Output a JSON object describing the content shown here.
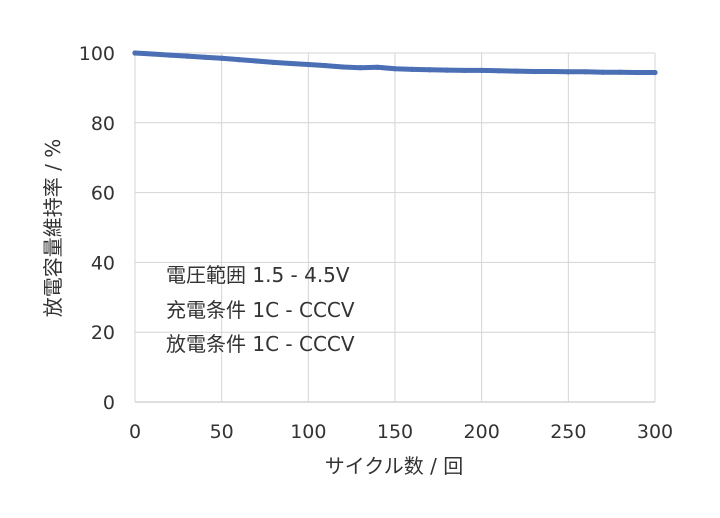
{
  "chart_data": {
    "type": "line",
    "title": "",
    "xlabel": "サイクル数 / 回",
    "ylabel": "放電容量維持率 / %",
    "xlim": [
      0,
      300
    ],
    "ylim": [
      0,
      100
    ],
    "xticks": [
      0,
      50,
      100,
      150,
      200,
      250,
      300
    ],
    "yticks": [
      0,
      20,
      40,
      60,
      80,
      100
    ],
    "grid": true,
    "legend": "none",
    "series_color": "#4a6fb5",
    "grid_color": "#d4d4d4",
    "series": [
      {
        "x": [
          0,
          10,
          20,
          30,
          40,
          50,
          60,
          70,
          80,
          90,
          100,
          110,
          120,
          130,
          140,
          150,
          160,
          170,
          180,
          190,
          200,
          210,
          220,
          230,
          240,
          250,
          260,
          270,
          280,
          290,
          300
        ],
        "y": [
          100,
          99.7,
          99.4,
          99.1,
          98.8,
          98.5,
          98.1,
          97.7,
          97.3,
          97.0,
          96.7,
          96.4,
          96.0,
          95.8,
          95.9,
          95.5,
          95.3,
          95.2,
          95.1,
          95.0,
          95.0,
          94.9,
          94.8,
          94.7,
          94.7,
          94.6,
          94.6,
          94.5,
          94.5,
          94.4,
          94.4
        ]
      }
    ],
    "annotations": [
      "電圧範囲 1.5 - 4.5V",
      "充電条件 1C - CCCV",
      "放電条件 1C - CCCV"
    ]
  }
}
